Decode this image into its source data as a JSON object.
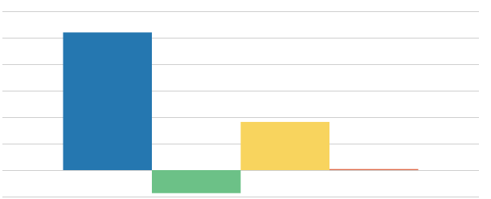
{
  "chart_data": {
    "type": "bar",
    "categories": [
      null,
      null,
      null,
      null
    ],
    "values": [
      5.2,
      -0.87,
      1.82,
      0.04
    ],
    "colors": [
      "#2577b0",
      "#6cc187",
      "#f8d45e",
      "#e06c4c"
    ],
    "ylim": [
      -1,
      6
    ],
    "yticks": [
      -1,
      0,
      1,
      2,
      3,
      4,
      5,
      6
    ],
    "grid": true
  }
}
